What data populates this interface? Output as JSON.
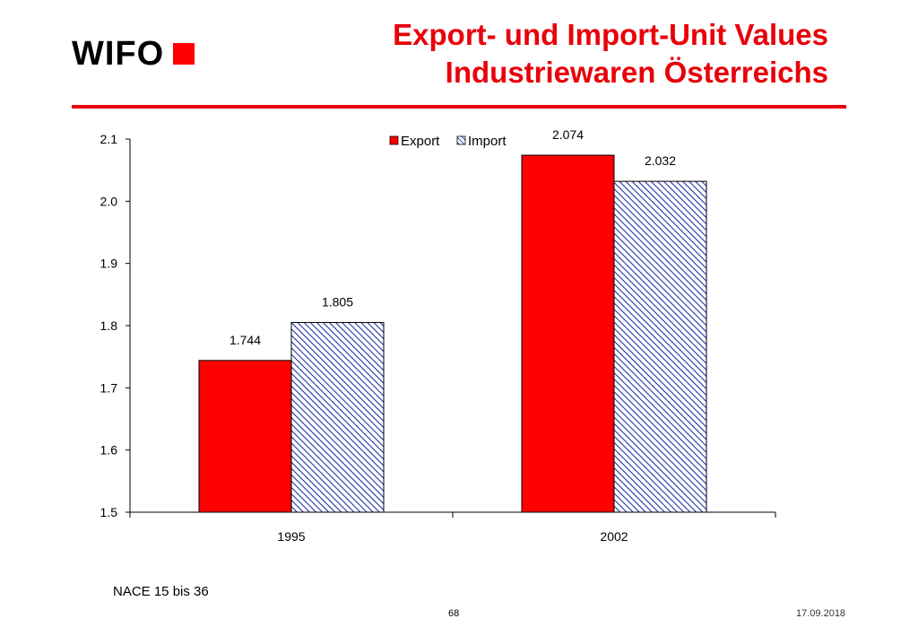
{
  "header": {
    "logo_text": "WIFO",
    "title_line1": "Export- und Import-Unit Values",
    "title_line2": "Industriewaren Österreichs"
  },
  "chart_data": {
    "type": "bar",
    "categories": [
      "1995",
      "2002"
    ],
    "series": [
      {
        "name": "Export",
        "values": [
          1.744,
          2.074
        ],
        "color": "#ff0000",
        "pattern": "solid"
      },
      {
        "name": "Import",
        "values": [
          1.805,
          2.032
        ],
        "color": "#2233aa",
        "pattern": "diagonal-hatch"
      }
    ],
    "data_labels": [
      [
        "1.744",
        "2.074"
      ],
      [
        "1.805",
        "2.032"
      ]
    ],
    "ylim": [
      1.5,
      2.1
    ],
    "yticks": [
      "1.5",
      "1.6",
      "1.7",
      "1.8",
      "1.9",
      "2.0",
      "2.1"
    ],
    "xlabel": "",
    "ylabel": "",
    "grid": false,
    "legend_position": "top-center"
  },
  "footer": {
    "note": "NACE 15 bis 36",
    "page_number": "68",
    "date": "17.09.2018"
  }
}
